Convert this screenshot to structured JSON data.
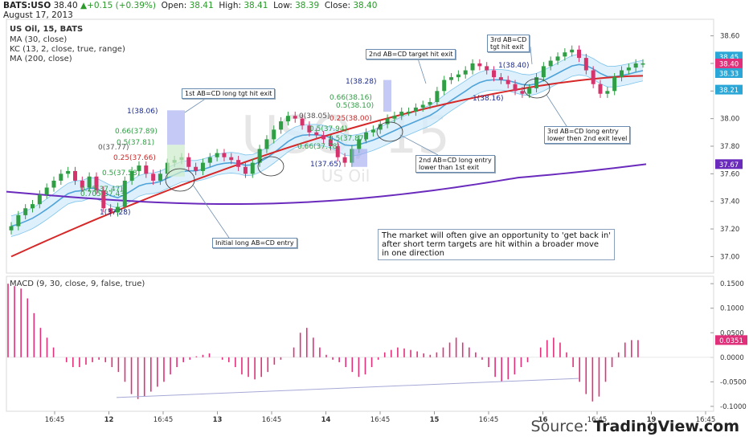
{
  "header": {
    "symbol": "BATS:USO",
    "last": "38.40",
    "change": "+0.15 (+0.39%)",
    "open_label": "Open:",
    "open": "38.41",
    "high_label": "High:",
    "high": "38.41",
    "low_label": "Low:",
    "low": "38.39",
    "close_label": "Close:",
    "close": "38.40",
    "date": "August 17, 2013"
  },
  "legend": {
    "title": "US Oil, 15, BATS",
    "ma30": "MA (30, close)",
    "kc": "KC (13, 2, close, true, range)",
    "ma200": "MA (200, close)",
    "macd": "MACD (9, 30, close, 9, false, true)"
  },
  "watermark": {
    "big": "USO, 15",
    "small": "US Oil"
  },
  "source": {
    "prefix": "Source: ",
    "brand": "TradingView.com"
  },
  "colors": {
    "candle_up": "#2f9e44",
    "candle_down": "#d6336c",
    "kc": "#4fa3d9",
    "kc_fill": "#d6ecfa",
    "ma30": "#d62828",
    "ma200": "#6a2bbd",
    "macd_hist": "#e0307a",
    "fib": "#2f9e44",
    "fib_red": "#c92a2a",
    "fib_blue": "#1c2b8f"
  },
  "annotations": {
    "a1": "1st AB=CD long tgt hit exit",
    "a2": "2nd AB=CD target hit exit",
    "a3_l1": "3rd AB=CD",
    "a3_l2": "tgt hit exit",
    "a4": "Initial long AB=CD entry",
    "a5_l1": "2nd AB=CD long entry",
    "a5_l2": "lower than 1st exit",
    "a6_l1": "3rd AB=CD long entry",
    "a6_l2": "lower then 2nd exit level",
    "note_l1": "The market will often give an opportunity to 'get back in'",
    "note_l2": "after short term targets are hit within a broader move",
    "note_l3": "in one direction"
  },
  "fib_labels": [
    {
      "t": "1(38.06)",
      "c": "fib_blue"
    },
    {
      "t": "0.66(37.89)",
      "c": "fib"
    },
    {
      "t": "0.5(37.81)",
      "c": "fib"
    },
    {
      "t": "0(37.77)",
      "c": "gray"
    },
    {
      "t": "0.25(37.66)",
      "c": "fib_red"
    },
    {
      "t": "0.5(37.58)",
      "c": "fib"
    },
    {
      "t": "0.25(37.47)",
      "c": "fib"
    },
    {
      "t": "0.705(37.43)",
      "c": "fib"
    },
    {
      "t": "1(37.28)",
      "c": "fib_blue"
    },
    {
      "t": "1(38.28)",
      "c": "fib_blue"
    },
    {
      "t": "0.66(38.16)",
      "c": "fib"
    },
    {
      "t": "0.5(38.10)",
      "c": "fib"
    },
    {
      "t": "0(38.05)",
      "c": "gray"
    },
    {
      "t": "0.25(38.00)",
      "c": "fib_red"
    },
    {
      "t": "0.5(37.94)",
      "c": "fib"
    },
    {
      "t": "0.5(37.87)",
      "c": "fib"
    },
    {
      "t": "0.66(37.78)",
      "c": "fib"
    },
    {
      "t": "1(37.65)",
      "c": "fib_blue"
    },
    {
      "t": "1(38.40)",
      "c": "fib_blue"
    },
    {
      "t": "1(38.16)",
      "c": "fib_blue"
    }
  ],
  "chart_data": [
    {
      "type": "line",
      "title": "US Oil, 15, BATS",
      "subtitle": "candlestick price pane with KC(13,2), MA(30), MA(200)",
      "x_tick_labels": [
        "16:45",
        "12",
        "16:45",
        "13",
        "16:45",
        "14",
        "16:45",
        "15",
        "16:45",
        "16",
        "16:45",
        "19",
        "16:45"
      ],
      "y_tick_labels": [
        "38.60",
        "38.40",
        "38.20",
        "38.00",
        "37.80",
        "37.60",
        "37.40",
        "37.20",
        "37.00"
      ],
      "ylim": [
        36.88,
        38.72
      ],
      "price_tags": [
        {
          "value": "38.45",
          "color": "#2aa7d6"
        },
        {
          "value": "38.40",
          "color": "#e0307a"
        },
        {
          "value": "38.33",
          "color": "#2aa7d6"
        },
        {
          "value": "38.21",
          "color": "#2aa7d6"
        },
        {
          "value": "37.67",
          "color": "#6a2bbd"
        }
      ],
      "series": [
        {
          "name": "Close",
          "values": [
            37.22,
            37.3,
            37.35,
            37.38,
            37.45,
            37.5,
            37.55,
            37.6,
            37.62,
            37.55,
            37.5,
            37.58,
            37.48,
            37.35,
            37.32,
            37.36,
            37.55,
            37.62,
            37.66,
            37.6,
            37.55,
            37.6,
            37.68,
            37.7,
            37.72,
            37.65,
            37.62,
            37.68,
            37.72,
            37.75,
            37.72,
            37.7,
            37.65,
            37.6,
            37.68,
            37.78,
            37.85,
            37.92,
            37.98,
            38.02,
            38.0,
            37.95,
            37.9,
            37.88,
            37.85,
            37.8,
            37.72,
            37.68,
            37.78,
            37.85,
            37.9,
            37.92,
            37.96,
            38.0,
            38.02,
            38.05,
            38.05,
            38.08,
            38.1,
            38.12,
            38.2,
            38.28,
            38.3,
            38.32,
            38.35,
            38.4,
            38.38,
            38.35,
            38.3,
            38.28,
            38.25,
            38.2,
            38.18,
            38.22,
            38.3,
            38.38,
            38.42,
            38.45,
            38.48,
            38.5,
            38.44,
            38.35,
            38.25,
            38.18,
            38.2,
            38.3,
            38.35,
            38.37,
            38.4,
            38.4
          ]
        },
        {
          "name": "MA (30, close)",
          "values_start": 37.0,
          "values_end": 38.31
        },
        {
          "name": "MA (200, close)",
          "values_start": 37.47,
          "values_end": 37.67
        }
      ]
    },
    {
      "type": "bar",
      "title": "MACD (9, 30, close, 9, false, true)",
      "y_tick_labels": [
        "0.1500",
        "0.1000",
        "0.0500",
        "0.0000",
        "-0.0500",
        "-0.1000"
      ],
      "ylim": [
        -0.11,
        0.165
      ],
      "last_value_tag": "0.0351",
      "series": [
        {
          "name": "MACD histogram",
          "values": [
            0.15,
            0.145,
            0.14,
            0.12,
            0.09,
            0.06,
            0.04,
            0.02,
            0.0,
            -0.01,
            -0.02,
            -0.02,
            -0.015,
            -0.01,
            -0.005,
            -0.01,
            -0.02,
            -0.03,
            -0.05,
            -0.075,
            -0.085,
            -0.08,
            -0.07,
            -0.06,
            -0.05,
            -0.035,
            -0.02,
            -0.01,
            -0.005,
            0.002,
            0.005,
            0.008,
            0.0,
            -0.005,
            -0.01,
            -0.02,
            -0.035,
            -0.04,
            -0.045,
            -0.04,
            -0.03,
            -0.015,
            -0.005,
            0.0,
            0.02,
            0.05,
            0.06,
            0.04,
            0.02,
            0.005,
            -0.005,
            -0.01,
            -0.02,
            -0.03,
            -0.04,
            -0.035,
            -0.02,
            -0.005,
            0.01,
            0.015,
            0.02,
            0.018,
            0.015,
            0.012,
            0.008,
            0.005,
            0.01,
            0.02,
            0.03,
            0.04,
            0.03,
            0.02,
            0.01,
            -0.005,
            -0.02,
            -0.04,
            -0.05,
            -0.045,
            -0.035,
            -0.02,
            -0.01,
            0.0,
            0.02,
            0.035,
            0.04,
            0.03,
            0.01,
            -0.02,
            -0.05,
            -0.075,
            -0.09,
            -0.08,
            -0.05,
            -0.02,
            0.01,
            0.03,
            0.035,
            0.035
          ]
        }
      ]
    }
  ]
}
